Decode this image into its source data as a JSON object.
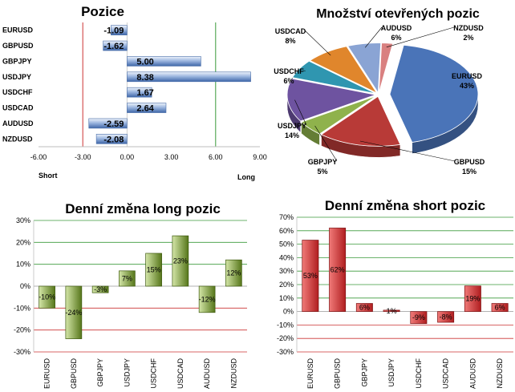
{
  "chart_data": [
    {
      "type": "bar",
      "orientation": "horizontal",
      "title": "Pozice",
      "categories": [
        "EURUSD",
        "GBPUSD",
        "GBPJPY",
        "USDJPY",
        "USDCHF",
        "USDCAD",
        "AUDUSD",
        "NZDUSD"
      ],
      "values": [
        -1.09,
        -1.62,
        5.0,
        8.38,
        1.67,
        2.64,
        -2.59,
        -2.08
      ],
      "value_labels": [
        "-1.09",
        "-1.62",
        "5.00",
        "8.38",
        "1.67",
        "2.64",
        "-2.59",
        "-2.08"
      ],
      "xlim": [
        -6,
        9
      ],
      "xticks": [
        "-6.00",
        "-3.00",
        "0.00",
        "3.00",
        "6.00",
        "9.00"
      ],
      "left_label": "Short",
      "right_label": "Long",
      "colors": {
        "bar": "#4f78b8",
        "bar_light": "#dfe8f6",
        "short_line": "#cc3333",
        "long_line": "#3a9a3a"
      }
    },
    {
      "type": "pie",
      "title": "Množství otevřených pozic",
      "slices": [
        {
          "name": "EURUSD",
          "value": 43,
          "label": "43%",
          "color": "#4a74b8"
        },
        {
          "name": "GBPUSD",
          "value": 15,
          "label": "15%",
          "color": "#b83a37"
        },
        {
          "name": "GBPJPY",
          "value": 5,
          "label": "5%",
          "color": "#8fb24c"
        },
        {
          "name": "USDJPY",
          "value": 14,
          "label": "14%",
          "color": "#6e53a0"
        },
        {
          "name": "USDCHF",
          "value": 6,
          "label": "6%",
          "color": "#2f96b0"
        },
        {
          "name": "USDCAD",
          "value": 8,
          "label": "8%",
          "color": "#e0862c"
        },
        {
          "name": "AUDUSD",
          "value": 6,
          "label": "6%",
          "color": "#8aa4d4"
        },
        {
          "name": "NZDUSD",
          "value": 2,
          "label": "2%",
          "color": "#d98080"
        }
      ]
    },
    {
      "type": "bar",
      "title": "Denní změna long pozic",
      "categories": [
        "EURUSD",
        "GBPUSD",
        "GBPJPY",
        "USDJPY",
        "USDCHF",
        "USDCAD",
        "AUDUSD",
        "NZDUSD"
      ],
      "values": [
        -10,
        -24,
        -3,
        7,
        15,
        23,
        -12,
        12
      ],
      "value_labels": [
        "-10%",
        "-24%",
        "-3%",
        "7%",
        "15%",
        "23%",
        "-12%",
        "12%"
      ],
      "ylim": [
        -30,
        30
      ],
      "yticks": [
        "-30%",
        "-20%",
        "-10%",
        "0%",
        "10%",
        "20%",
        "30%"
      ],
      "colors": {
        "bar": "#5f7f1f",
        "bar_light": "#c5d99a",
        "grid_pos": "#3a9a3a",
        "grid_neg": "#cc3333"
      }
    },
    {
      "type": "bar",
      "title": "Denní změna short pozic",
      "categories": [
        "EURUSD",
        "GBPUSD",
        "GBPJPY",
        "USDJPY",
        "USDCHF",
        "USDCAD",
        "AUDUSD",
        "NZDUSD"
      ],
      "values": [
        53,
        62,
        6,
        1,
        -9,
        -8,
        19,
        6
      ],
      "value_labels": [
        "53%",
        "62%",
        "6%",
        "1%",
        "-9%",
        "-8%",
        "19%",
        "6%"
      ],
      "ylim": [
        -30,
        70
      ],
      "yticks": [
        "-30%",
        "-20%",
        "-10%",
        "0%",
        "10%",
        "20%",
        "30%",
        "40%",
        "50%",
        "60%",
        "70%"
      ],
      "colors": {
        "bar": "#c0282a",
        "bar_light": "#e86a6a",
        "grid_pos": "#3a9a3a",
        "grid_neg": "#cc3333"
      }
    }
  ]
}
